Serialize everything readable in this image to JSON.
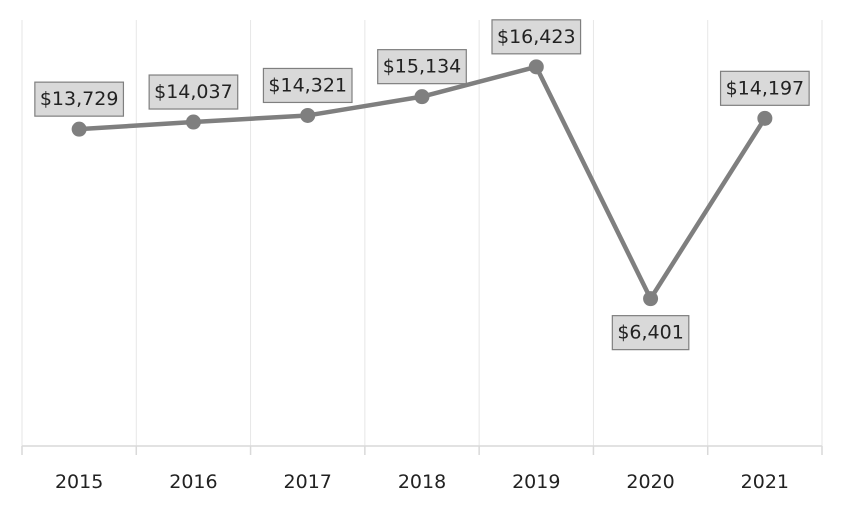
{
  "chart_data": {
    "type": "line",
    "title": "",
    "xlabel": "",
    "ylabel": "",
    "categories": [
      "2015",
      "2016",
      "2017",
      "2018",
      "2019",
      "2020",
      "2021"
    ],
    "series": [
      {
        "values": [
          13729,
          14037,
          14321,
          15134,
          16423,
          6401,
          14197
        ],
        "labels": [
          "$13,729",
          "$14,037",
          "$14,321",
          "$15,134",
          "$16,423",
          "$6,401",
          "$14,197"
        ],
        "color": "#7f7f7f"
      }
    ],
    "grid": "vertical",
    "legend": "none"
  }
}
